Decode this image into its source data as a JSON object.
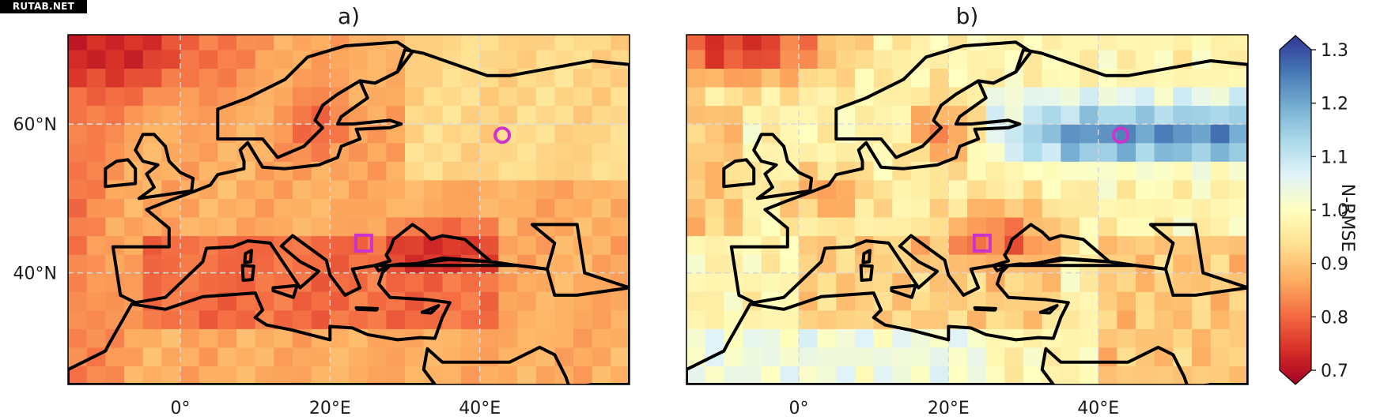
{
  "watermark": "RUTAB.NET",
  "panels": [
    {
      "id": "a",
      "title": "a)",
      "markers": [
        {
          "kind": "circle",
          "lon": 43,
          "lat": 58.5
        },
        {
          "kind": "square",
          "lon": 24.5,
          "lat": 44
        }
      ]
    },
    {
      "id": "b",
      "title": "b)",
      "markers": [
        {
          "kind": "circle",
          "lon": 43,
          "lat": 58.5
        },
        {
          "kind": "square",
          "lon": 24.5,
          "lat": 44
        }
      ]
    }
  ],
  "x_ticks": [
    {
      "lon": 0,
      "label": "0°"
    },
    {
      "lon": 20,
      "label": "20°E"
    },
    {
      "lon": 40,
      "label": "40°E"
    }
  ],
  "y_ticks": [
    {
      "lat": 60,
      "label": "60°N"
    },
    {
      "lat": 40,
      "label": "40°N"
    }
  ],
  "map_extent": {
    "lon_min": -15,
    "lon_max": 60,
    "lat_min": 25,
    "lat_max": 72
  },
  "colorbar": {
    "label": "N-RMSE",
    "min": 0.7,
    "max": 1.3,
    "ticks": [
      "0.7",
      "0.8",
      "0.9",
      "1.0",
      "1.1",
      "1.2",
      "1.3"
    ],
    "extend": "both",
    "colormap": "RdYlBu",
    "colors": [
      "#a50026",
      "#d73027",
      "#f46d43",
      "#fdae61",
      "#fee090",
      "#ffffbf",
      "#e0f3f8",
      "#abd9e9",
      "#74add1",
      "#4575b4",
      "#313695"
    ]
  },
  "marker_color": "#cc33cc"
}
